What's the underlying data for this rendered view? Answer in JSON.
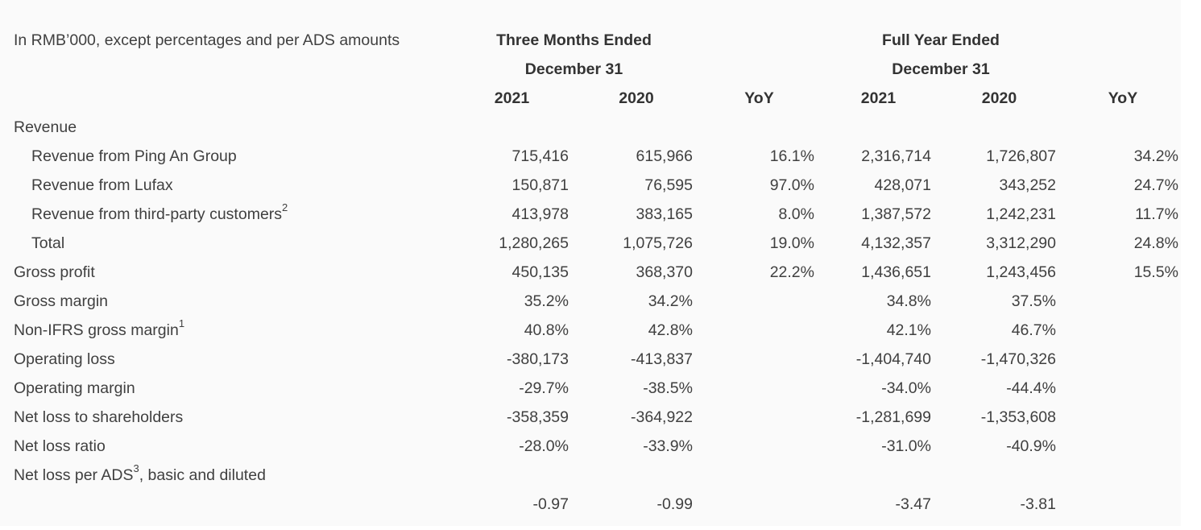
{
  "header": {
    "unit_note": "In RMB’000, except percentages and per ADS amounts",
    "three_months": "Three Months Ended",
    "full_year": "Full Year Ended",
    "period_date": "December 31",
    "year_2021": "2021",
    "year_2020": "2020",
    "yoy": "YoY"
  },
  "rows": {
    "revenue": {
      "label": "Revenue"
    },
    "rev_pingan": {
      "label": "Revenue from Ping An Group",
      "q21": "715,416",
      "q20": "615,966",
      "qyoy": "16.1%",
      "f21": "2,316,714",
      "f20": "1,726,807",
      "fyoy": "34.2%"
    },
    "rev_lufax": {
      "label": "Revenue from Lufax",
      "q21": "150,871",
      "q20": "76,595",
      "qyoy": "97.0%",
      "f21": "428,071",
      "f20": "343,252",
      "fyoy": "24.7%"
    },
    "rev_third": {
      "label": "Revenue from third-party customers",
      "sup": "2",
      "q21": "413,978",
      "q20": "383,165",
      "qyoy": "8.0%",
      "f21": "1,387,572",
      "f20": "1,242,231",
      "fyoy": "11.7%"
    },
    "total": {
      "label": "Total",
      "q21": "1,280,265",
      "q20": "1,075,726",
      "qyoy": "19.0%",
      "f21": "4,132,357",
      "f20": "3,312,290",
      "fyoy": "24.8%"
    },
    "gross_profit": {
      "label": "Gross profit",
      "q21": "450,135",
      "q20": "368,370",
      "qyoy": "22.2%",
      "f21": "1,436,651",
      "f20": "1,243,456",
      "fyoy": "15.5%"
    },
    "gross_margin": {
      "label": "Gross margin",
      "q21": "35.2%",
      "q20": "34.2%",
      "f21": "34.8%",
      "f20": "37.5%"
    },
    "nonifrs_margin": {
      "label": "Non-IFRS gross margin",
      "sup": "1",
      "q21": "40.8%",
      "q20": "42.8%",
      "f21": "42.1%",
      "f20": "46.7%"
    },
    "operating_loss": {
      "label": "Operating loss",
      "q21": "-380,173",
      "q20": "-413,837",
      "f21": "-1,404,740",
      "f20": "-1,470,326"
    },
    "operating_margin": {
      "label": "Operating margin",
      "q21": "-29.7%",
      "q20": "-38.5%",
      "f21": "-34.0%",
      "f20": "-44.4%"
    },
    "net_loss": {
      "label": "Net loss to shareholders",
      "q21": "-358,359",
      "q20": "-364,922",
      "f21": "-1,281,699",
      "f20": "-1,353,608"
    },
    "net_loss_ratio": {
      "label": "Net loss ratio",
      "q21": "-28.0%",
      "q20": "-33.9%",
      "f21": "-31.0%",
      "f20": "-40.9%"
    },
    "net_loss_ads": {
      "label_a": "Net loss per ADS",
      "sup": "3",
      "label_b": ", basic and diluted",
      "q21": "-0.97",
      "q20": "-0.99",
      "f21": "-3.47",
      "f20": "-3.81"
    }
  }
}
